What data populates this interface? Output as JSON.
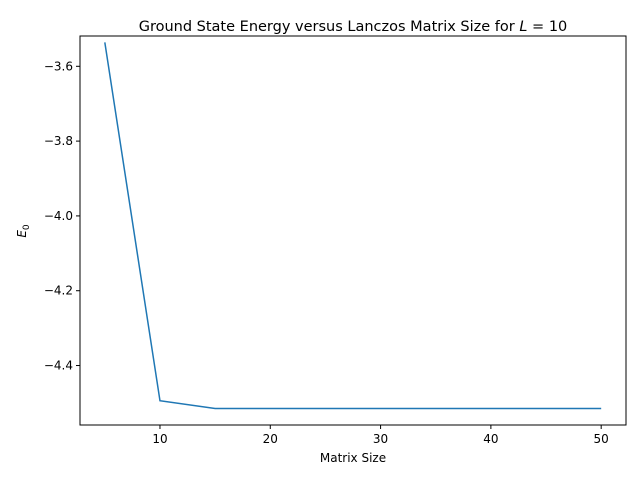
{
  "chart_data": {
    "type": "line",
    "title": "Ground State Energy versus Lanczos Matrix Size for L = 10",
    "title_parts": {
      "text": "Ground State Energy versus Lanczos Matrix Size for ",
      "var": "L",
      "eq": " = 10"
    },
    "xlabel": "Matrix Size",
    "ylabel": {
      "base": "E",
      "sub": "0"
    },
    "xlim": [
      2.75,
      52.25
    ],
    "ylim": [
      -4.559,
      -3.519
    ],
    "xticks": [
      10,
      20,
      30,
      40,
      50
    ],
    "yticks": [
      -3.6,
      -3.8,
      -4.0,
      -4.2,
      -4.4
    ],
    "xtick_labels": [
      "10",
      "20",
      "30",
      "40",
      "50"
    ],
    "ytick_labels": [
      "−3.6",
      "−3.8",
      "−4.0",
      "−4.2",
      "−4.4"
    ],
    "grid": false,
    "series": [
      {
        "color": "#1f77b4",
        "x": [
          5,
          10,
          15,
          20,
          25,
          30,
          35,
          40,
          45,
          50
        ],
        "y": [
          -3.536,
          -4.494,
          -4.515,
          -4.515,
          -4.515,
          -4.515,
          -4.515,
          -4.515,
          -4.515,
          -4.515
        ]
      }
    ]
  }
}
